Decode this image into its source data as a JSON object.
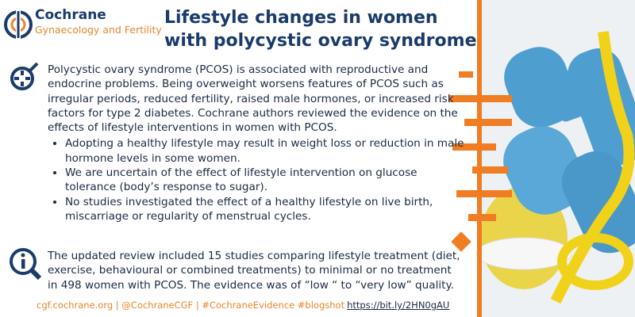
{
  "logo": {
    "name": "Cochrane",
    "group": "Gynaecology and Fertility"
  },
  "title_lines": [
    "Lifestyle changes in women",
    "with polycystic ovary syndrome"
  ],
  "intro": {
    "text": "Polycystic ovary syndrome (PCOS) is associated with reproductive and endocrine problems. Being overweight worsens features of PCOS such as irregular periods, reduced fertility, raised male hormones, or increased risk factors for type 2 diabetes. Cochrane authors reviewed the evidence on the effects of lifestyle interventions in women with PCOS.",
    "bullets": [
      "Adopting a healthy lifestyle may result in weight loss or reduction in male hormone levels in some women.",
      "We are uncertain of the effect of lifestyle intervention on glucose tolerance (body’s response to sugar).",
      "No studies investigated the effect of a healthy lifestyle on live birth, miscarriage or regularity of menstrual cycles."
    ]
  },
  "summary": "The updated review included 15 studies comparing lifestyle treatment (diet, exercise, behavioural or combined treatments) to minimal or no treatment in 498 women with PCOS. The evidence was of “low “ to “very low” quality.",
  "footer": {
    "text": "cgf.cochrane.org | @CochraneCGF | #CochraneEvidence #blogshot",
    "link": "https://bit.ly/2HN0gAU"
  }
}
